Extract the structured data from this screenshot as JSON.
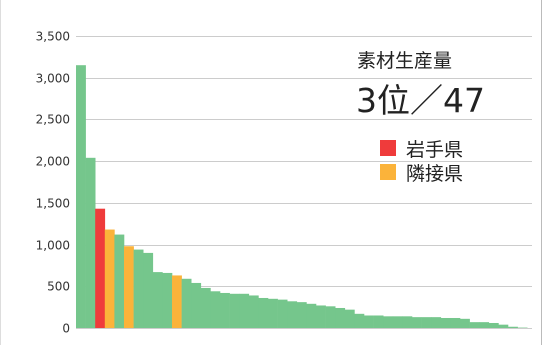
{
  "colors": {
    "other": "#75c68c",
    "highlight": "#ef3b3b",
    "adjacent": "#fbb33a",
    "grid": "#cccccc",
    "frame": "#bbbbbb"
  },
  "panel": {
    "title": "素材生産量",
    "rank": "3位／47"
  },
  "legend": [
    {
      "label": "岩手県",
      "color": "#ef3b3b"
    },
    {
      "label": "隣接県",
      "color": "#fbb33a"
    }
  ],
  "chart_data": {
    "type": "bar",
    "ylim": [
      0,
      3500
    ],
    "yticks": [
      0,
      500,
      1000,
      1500,
      2000,
      2500,
      3000,
      3500
    ],
    "ytick_labels": [
      "0",
      "500",
      "1,000",
      "1,500",
      "2,000",
      "2,500",
      "3,000",
      "3,500"
    ],
    "grid": true,
    "legend_position": "right",
    "values": [
      3150,
      2040,
      1430,
      1180,
      1120,
      980,
      940,
      900,
      670,
      660,
      630,
      590,
      540,
      480,
      440,
      420,
      410,
      410,
      390,
      360,
      350,
      340,
      320,
      310,
      290,
      270,
      260,
      240,
      220,
      170,
      150,
      150,
      140,
      140,
      140,
      130,
      130,
      130,
      120,
      120,
      110,
      70,
      70,
      60,
      40,
      15,
      5
    ],
    "highlight_index": 2,
    "adjacent_indices": [
      3,
      5,
      10
    ]
  }
}
